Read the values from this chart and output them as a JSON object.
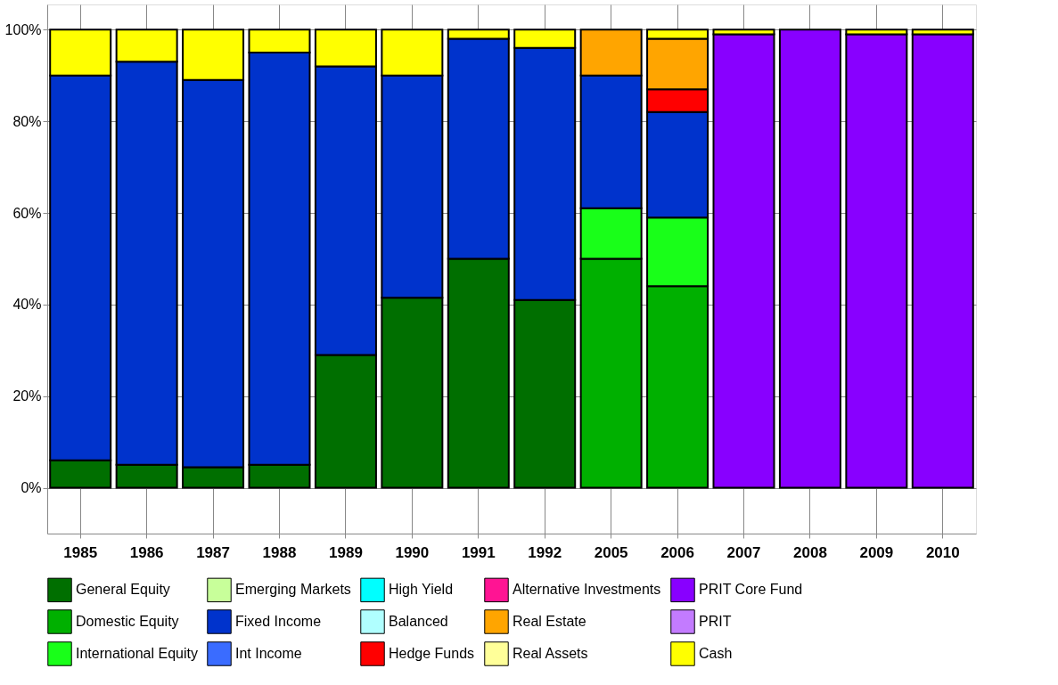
{
  "chart_data": {
    "type": "bar",
    "stacked": true,
    "categories": [
      "1985",
      "1986",
      "1987",
      "1988",
      "1989",
      "1990",
      "1991",
      "1992",
      "2005",
      "2006",
      "2007",
      "2008",
      "2009",
      "2010"
    ],
    "series": [
      {
        "name": "General Equity",
        "color": "#006f00",
        "values": [
          6,
          5,
          4.5,
          5,
          29,
          41.5,
          50,
          41,
          null,
          null,
          null,
          null,
          null,
          null
        ]
      },
      {
        "name": "Domestic Equity",
        "color": "#00b000",
        "values": [
          null,
          null,
          null,
          null,
          null,
          null,
          null,
          null,
          50,
          44,
          null,
          null,
          null,
          null
        ]
      },
      {
        "name": "International Equity",
        "color": "#19ff19",
        "values": [
          null,
          null,
          null,
          null,
          null,
          null,
          null,
          null,
          11,
          15,
          null,
          null,
          null,
          null
        ]
      },
      {
        "name": "Emerging Markets",
        "color": "#c8ff9a",
        "values": [
          null,
          null,
          null,
          null,
          null,
          null,
          null,
          null,
          null,
          null,
          null,
          null,
          null,
          null
        ]
      },
      {
        "name": "Fixed Income",
        "color": "#0033cc",
        "values": [
          84,
          88,
          84.5,
          90,
          63,
          48.5,
          48,
          55,
          29,
          23,
          null,
          null,
          null,
          null
        ]
      },
      {
        "name": "Int  Income",
        "color": "#3a6cff",
        "values": [
          null,
          null,
          null,
          null,
          null,
          null,
          null,
          null,
          null,
          null,
          null,
          null,
          null,
          null
        ]
      },
      {
        "name": "High Yield",
        "color": "#00ffff",
        "values": [
          null,
          null,
          null,
          null,
          null,
          null,
          null,
          null,
          null,
          null,
          null,
          null,
          null,
          null
        ]
      },
      {
        "name": "Balanced",
        "color": "#b0ffff",
        "values": [
          null,
          null,
          null,
          null,
          null,
          null,
          null,
          null,
          null,
          null,
          null,
          null,
          null,
          null
        ]
      },
      {
        "name": "Hedge Funds",
        "color": "#ff0000",
        "values": [
          null,
          null,
          null,
          null,
          null,
          null,
          null,
          null,
          null,
          5,
          null,
          null,
          null,
          null
        ]
      },
      {
        "name": "Alternative Investments",
        "color": "#ff1493",
        "values": [
          null,
          null,
          null,
          null,
          null,
          null,
          null,
          null,
          null,
          null,
          null,
          null,
          null,
          null
        ]
      },
      {
        "name": "Real Estate",
        "color": "#ffa500",
        "values": [
          null,
          null,
          null,
          null,
          null,
          null,
          null,
          null,
          10,
          11,
          null,
          null,
          null,
          null
        ]
      },
      {
        "name": "Real Assets",
        "color": "#ffff99",
        "values": [
          null,
          null,
          null,
          null,
          null,
          null,
          null,
          null,
          null,
          null,
          null,
          null,
          null,
          null
        ]
      },
      {
        "name": "PRIT Core Fund",
        "color": "#8800ff",
        "values": [
          null,
          null,
          null,
          null,
          null,
          null,
          null,
          null,
          null,
          null,
          99,
          100,
          99,
          99
        ]
      },
      {
        "name": "PRIT",
        "color": "#c37bff",
        "values": [
          null,
          null,
          null,
          null,
          null,
          null,
          null,
          null,
          null,
          null,
          null,
          null,
          null,
          null
        ]
      },
      {
        "name": "Cash",
        "color": "#ffff00",
        "values": [
          10,
          7,
          11,
          5,
          8,
          10,
          2,
          4,
          null,
          2,
          1,
          null,
          1,
          1
        ]
      }
    ],
    "ylim": [
      -10,
      105.5
    ],
    "yticks": [
      {
        "value": 0,
        "label": "0%"
      },
      {
        "value": 20,
        "label": "20%"
      },
      {
        "value": 40,
        "label": "40%"
      },
      {
        "value": 60,
        "label": "60%"
      },
      {
        "value": 80,
        "label": "80%"
      },
      {
        "value": 100,
        "label": "100%"
      }
    ],
    "grid": true,
    "legend": "bottom"
  }
}
